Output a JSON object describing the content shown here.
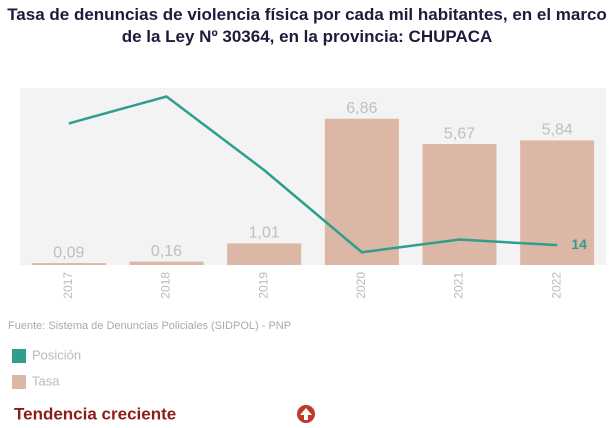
{
  "chart_data": {
    "type": "bar",
    "title": "Tasa de denuncias de violencia física por cada mil habitantes, en el marco de la Ley Nº 30364, en la provincia: CHUPACA",
    "categories": [
      "2017",
      "2018",
      "2019",
      "2020",
      "2021",
      "2022"
    ],
    "series": [
      {
        "name": "Tasa",
        "type": "bar",
        "color": "#ddb7a6",
        "values": [
          0.09,
          0.16,
          1.01,
          6.86,
          5.67,
          5.84
        ],
        "value_labels": [
          "0,09",
          "0,16",
          "1,01",
          "6,86",
          "5,67",
          "5,84"
        ]
      },
      {
        "name": "Posición",
        "type": "line",
        "axis": "y2",
        "color": "#2f9e8e",
        "values": [
          100,
          119,
          67,
          9,
          18,
          14
        ],
        "value_labels": [
          null,
          null,
          null,
          null,
          null,
          "14"
        ]
      }
    ],
    "ylim": [
      0,
      8.3
    ],
    "y2lim": [
      0,
      125
    ],
    "source": "Fuente: Sistema de Denuncias Policiales (SIDPOL) - PNP",
    "trend": "Tendencia creciente"
  }
}
